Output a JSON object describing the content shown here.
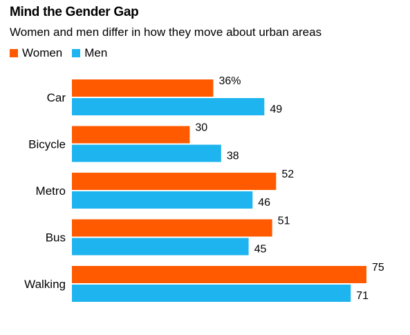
{
  "chart_data": {
    "type": "bar",
    "orientation": "horizontal",
    "title": "Mind the Gender Gap",
    "subtitle": "Women and men differ in how they move about urban areas",
    "categories": [
      "Car",
      "Bicycle",
      "Metro",
      "Bus",
      "Walking"
    ],
    "series": [
      {
        "name": "Women",
        "color": "#ff5a00",
        "values": [
          36,
          30,
          52,
          51,
          75
        ],
        "labels": [
          "36%",
          "30",
          "52",
          "51",
          "75"
        ]
      },
      {
        "name": "Men",
        "color": "#1eb4ef",
        "values": [
          49,
          38,
          46,
          45,
          71
        ],
        "labels": [
          "49",
          "38",
          "46",
          "45",
          "71"
        ]
      }
    ],
    "xlim": [
      0,
      75
    ],
    "grid": false,
    "legend_position": "top-left"
  }
}
